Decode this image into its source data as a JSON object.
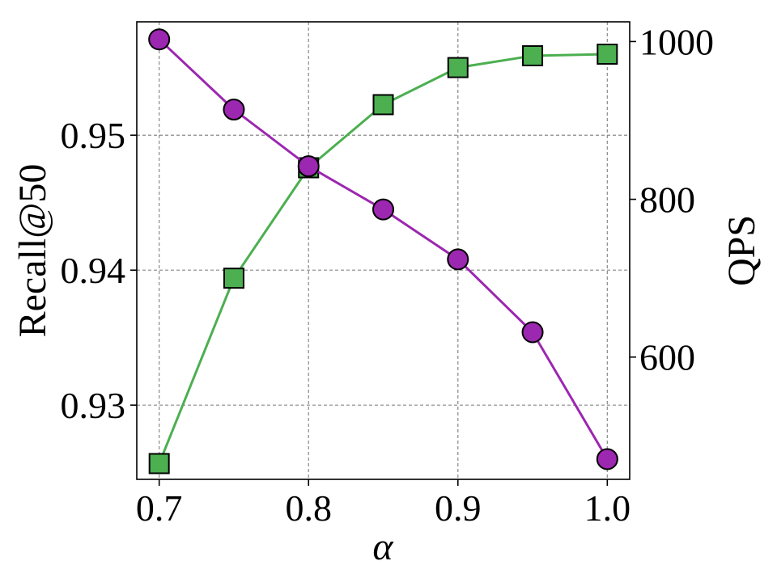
{
  "chart_data": {
    "type": "line",
    "xlabel": "α",
    "ylabel_left": "Recall@50",
    "ylabel_right": "QPS",
    "x": [
      0.7,
      0.75,
      0.8,
      0.85,
      0.9,
      0.95,
      1.0
    ],
    "xlim": [
      0.685,
      1.015
    ],
    "xticks": [
      0.7,
      0.8,
      0.9,
      1.0
    ],
    "xtick_labels": [
      "0.7",
      "0.8",
      "0.9",
      "1.0"
    ],
    "ylim_left": [
      0.9245,
      0.9584
    ],
    "yticks_left": [
      0.93,
      0.94,
      0.95
    ],
    "ytick_labels_left": [
      "0.93",
      "0.94",
      "0.95"
    ],
    "ylim_right": [
      445,
      1025
    ],
    "yticks_right": [
      600,
      800,
      1000
    ],
    "ytick_labels_right": [
      "600",
      "800",
      "1000"
    ],
    "grid": true,
    "legend": "none",
    "series": [
      {
        "axis": "left",
        "marker": "circle",
        "color": "#9c27b0",
        "values": [
          0.9571,
          0.9519,
          0.9477,
          0.9445,
          0.9408,
          0.9354,
          0.926
        ]
      },
      {
        "axis": "right",
        "marker": "square",
        "color": "#4caf50",
        "values": [
          465,
          700,
          840,
          920,
          967,
          982,
          984
        ]
      }
    ]
  }
}
